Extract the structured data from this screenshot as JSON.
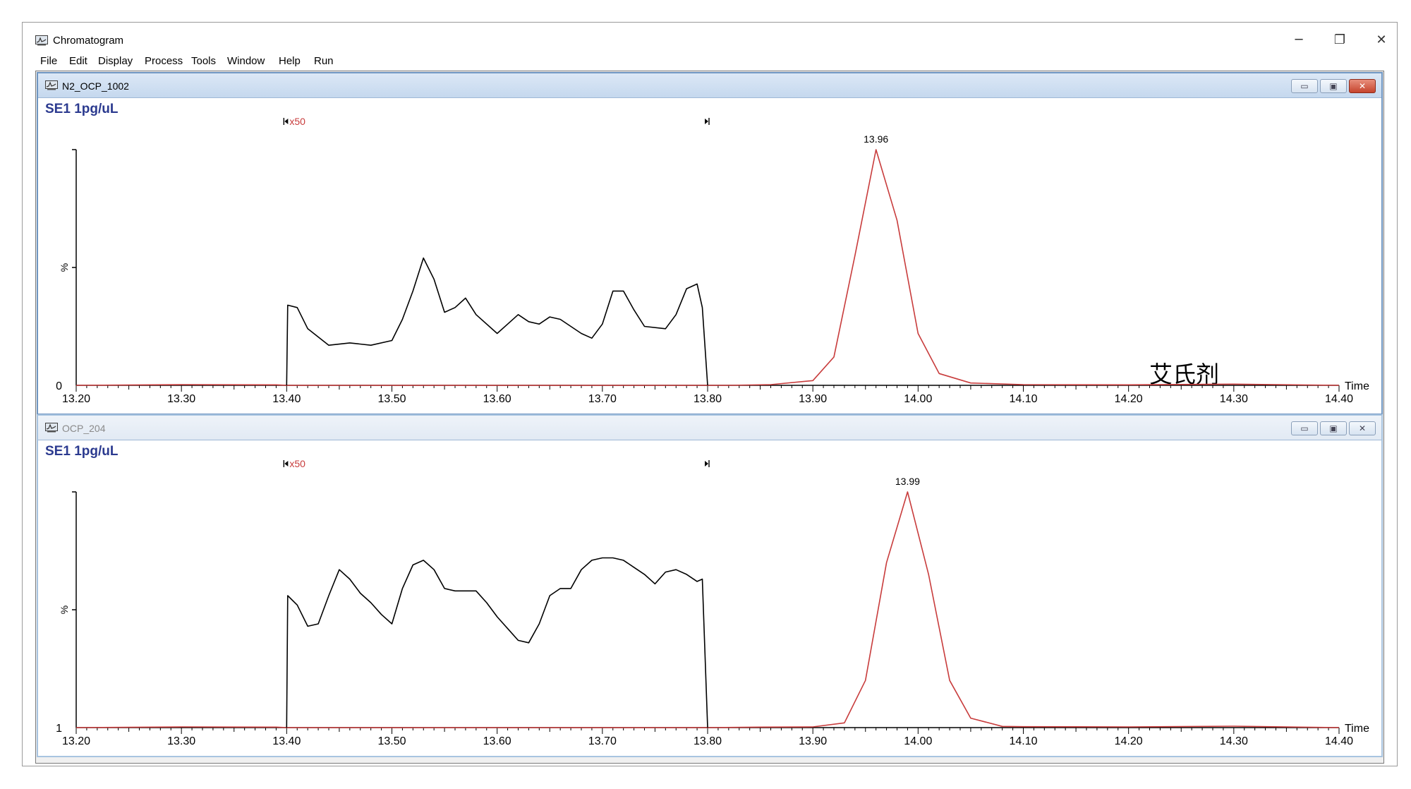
{
  "window": {
    "title": "Chromatogram",
    "controls": {
      "minimize": "─",
      "restore": "❐",
      "close": "✕"
    }
  },
  "menu": [
    "File",
    "Edit",
    "Display",
    "Process",
    "Tools",
    "Window",
    "Help",
    "Run"
  ],
  "panels": [
    {
      "name": "N2_OCP_1002",
      "sample": "SE1 1pg/uL",
      "annotation": "艾氏剂",
      "peak_label": "13.96",
      "zoom_label": "x50",
      "y_axis_label": "%",
      "y_base_label": "0",
      "x_axis_label": "Time",
      "state": "active"
    },
    {
      "name": "OCP_204",
      "sample": "SE1 1pg/uL",
      "annotation": "",
      "peak_label": "13.99",
      "zoom_label": "x50",
      "y_axis_label": "%",
      "y_base_label": "1",
      "x_axis_label": "Time",
      "state": "inactive"
    }
  ],
  "colors": {
    "peak": "#c83c3c",
    "trace": "#000000",
    "sample_text": "#2b3a8f"
  },
  "chart_data": [
    {
      "type": "line",
      "xlim": [
        13.2,
        14.4
      ],
      "x_ticks": [
        "13.20",
        "13.30",
        "13.40",
        "13.50",
        "13.60",
        "13.70",
        "13.80",
        "13.90",
        "14.00",
        "14.10",
        "14.20",
        "14.30",
        "14.40"
      ],
      "y_unit": "% relative abundance (estimated)",
      "ylim": [
        0,
        100
      ],
      "zoom_region": {
        "x_start": 13.4,
        "x_end": 13.8,
        "factor": 50
      },
      "series": [
        {
          "color": "red",
          "x": [
            13.2,
            13.3,
            13.39,
            13.4,
            13.8,
            13.82,
            13.86,
            13.9,
            13.92,
            13.94,
            13.96,
            13.98,
            14.0,
            14.02,
            14.05,
            14.1,
            14.2,
            14.3,
            14.4
          ],
          "y": [
            0,
            0.3,
            0.2,
            0,
            0,
            0,
            0.3,
            2,
            12,
            55,
            100,
            70,
            22,
            5,
            1,
            0.3,
            0.2,
            0.5,
            0
          ]
        },
        {
          "color": "black",
          "x": [
            13.4,
            13.401,
            13.41,
            13.42,
            13.44,
            13.46,
            13.48,
            13.5,
            13.51,
            13.52,
            13.53,
            13.54,
            13.55,
            13.56,
            13.57,
            13.58,
            13.6,
            13.61,
            13.62,
            13.63,
            13.64,
            13.65,
            13.66,
            13.68,
            13.69,
            13.7,
            13.71,
            13.72,
            13.73,
            13.74,
            13.76,
            13.77,
            13.78,
            13.79,
            13.795,
            13.8
          ],
          "y": [
            0,
            34,
            33,
            24,
            17,
            18,
            17,
            19,
            28,
            40,
            54,
            45,
            31,
            33,
            37,
            30,
            22,
            26,
            30,
            27,
            26,
            29,
            28,
            22,
            20,
            26,
            40,
            40,
            32,
            25,
            24,
            30,
            41,
            43,
            33,
            0
          ]
        }
      ]
    },
    {
      "type": "line",
      "xlim": [
        13.2,
        14.4
      ],
      "x_ticks": [
        "13.20",
        "13.30",
        "13.40",
        "13.50",
        "13.60",
        "13.70",
        "13.80",
        "13.90",
        "14.00",
        "14.10",
        "14.20",
        "14.30",
        "14.40"
      ],
      "y_unit": "% relative abundance (estimated)",
      "ylim": [
        0,
        100
      ],
      "zoom_region": {
        "x_start": 13.4,
        "x_end": 13.8,
        "factor": 50
      },
      "series": [
        {
          "color": "red",
          "x": [
            13.2,
            13.3,
            13.39,
            13.4,
            13.8,
            13.85,
            13.9,
            13.93,
            13.95,
            13.97,
            13.99,
            14.01,
            14.03,
            14.05,
            14.08,
            14.1,
            14.2,
            14.3,
            14.4
          ],
          "y": [
            0,
            0.3,
            0.2,
            0,
            0,
            0.2,
            0.3,
            2,
            20,
            70,
            100,
            65,
            20,
            4,
            0.5,
            0.4,
            0.3,
            0.6,
            0
          ]
        },
        {
          "color": "black",
          "x": [
            13.4,
            13.401,
            13.41,
            13.42,
            13.43,
            13.44,
            13.45,
            13.46,
            13.47,
            13.48,
            13.49,
            13.5,
            13.51,
            13.52,
            13.53,
            13.54,
            13.55,
            13.56,
            13.58,
            13.59,
            13.6,
            13.61,
            13.62,
            13.63,
            13.64,
            13.65,
            13.66,
            13.67,
            13.68,
            13.69,
            13.7,
            13.71,
            13.72,
            13.73,
            13.74,
            13.75,
            13.76,
            13.77,
            13.78,
            13.79,
            13.795,
            13.8
          ],
          "y": [
            0,
            56,
            52,
            43,
            44,
            56,
            67,
            63,
            57,
            53,
            48,
            44,
            59,
            69,
            71,
            67,
            59,
            58,
            58,
            53,
            47,
            42,
            37,
            36,
            44,
            56,
            59,
            59,
            67,
            71,
            72,
            72,
            71,
            68,
            65,
            61,
            66,
            67,
            65,
            62,
            63,
            0
          ]
        }
      ]
    }
  ]
}
